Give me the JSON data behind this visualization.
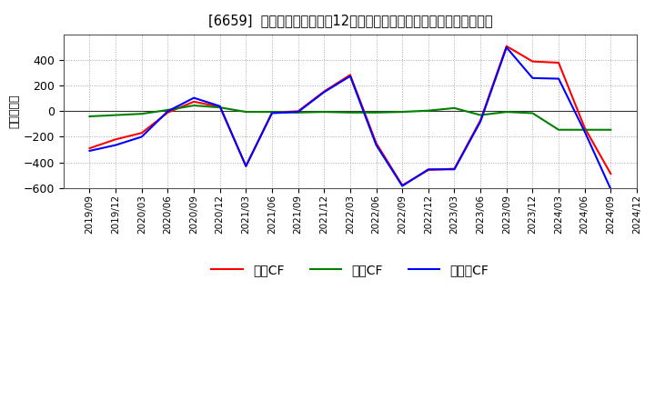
{
  "title": "[6659]  キャッシュフローの12か月移動合計の対前年同期増減額の推移",
  "ylabel": "（百万円）",
  "background_color": "#ffffff",
  "plot_bg_color": "#ffffff",
  "grid_color": "#aaaaaa",
  "ylim": [
    -600,
    600
  ],
  "yticks": [
    -600,
    -400,
    -200,
    0,
    200,
    400
  ],
  "legend_labels": [
    "営業CF",
    "投資CF",
    "フリーCF"
  ],
  "line_colors": {
    "eigyo": "#ff0000",
    "toshi": "#008000",
    "free": "#0000ff"
  },
  "x_labels": [
    "2019/09",
    "2019/12",
    "2020/03",
    "2020/06",
    "2020/09",
    "2020/12",
    "2021/03",
    "2021/06",
    "2021/09",
    "2021/12",
    "2022/03",
    "2022/06",
    "2022/09",
    "2022/12",
    "2023/03",
    "2023/06",
    "2023/09",
    "2023/12",
    "2024/03",
    "2024/06",
    "2024/09",
    "2024/12"
  ],
  "eigyo_cf": [
    -290,
    -220,
    -170,
    -10,
    75,
    35,
    -430,
    -10,
    0,
    155,
    285,
    -250,
    -580,
    -460,
    -450,
    -70,
    510,
    390,
    380,
    -130,
    -490,
    null
  ],
  "toshi_cf": [
    -40,
    -30,
    -20,
    10,
    45,
    30,
    -5,
    -5,
    -10,
    -5,
    -10,
    -10,
    -5,
    5,
    25,
    -30,
    -5,
    -15,
    -145,
    -145,
    -145,
    null
  ],
  "free_cf": [
    -310,
    -265,
    -200,
    0,
    105,
    40,
    -430,
    -15,
    -5,
    150,
    275,
    -265,
    -585,
    -455,
    -455,
    -80,
    500,
    260,
    255,
    -160,
    -610,
    null
  ]
}
